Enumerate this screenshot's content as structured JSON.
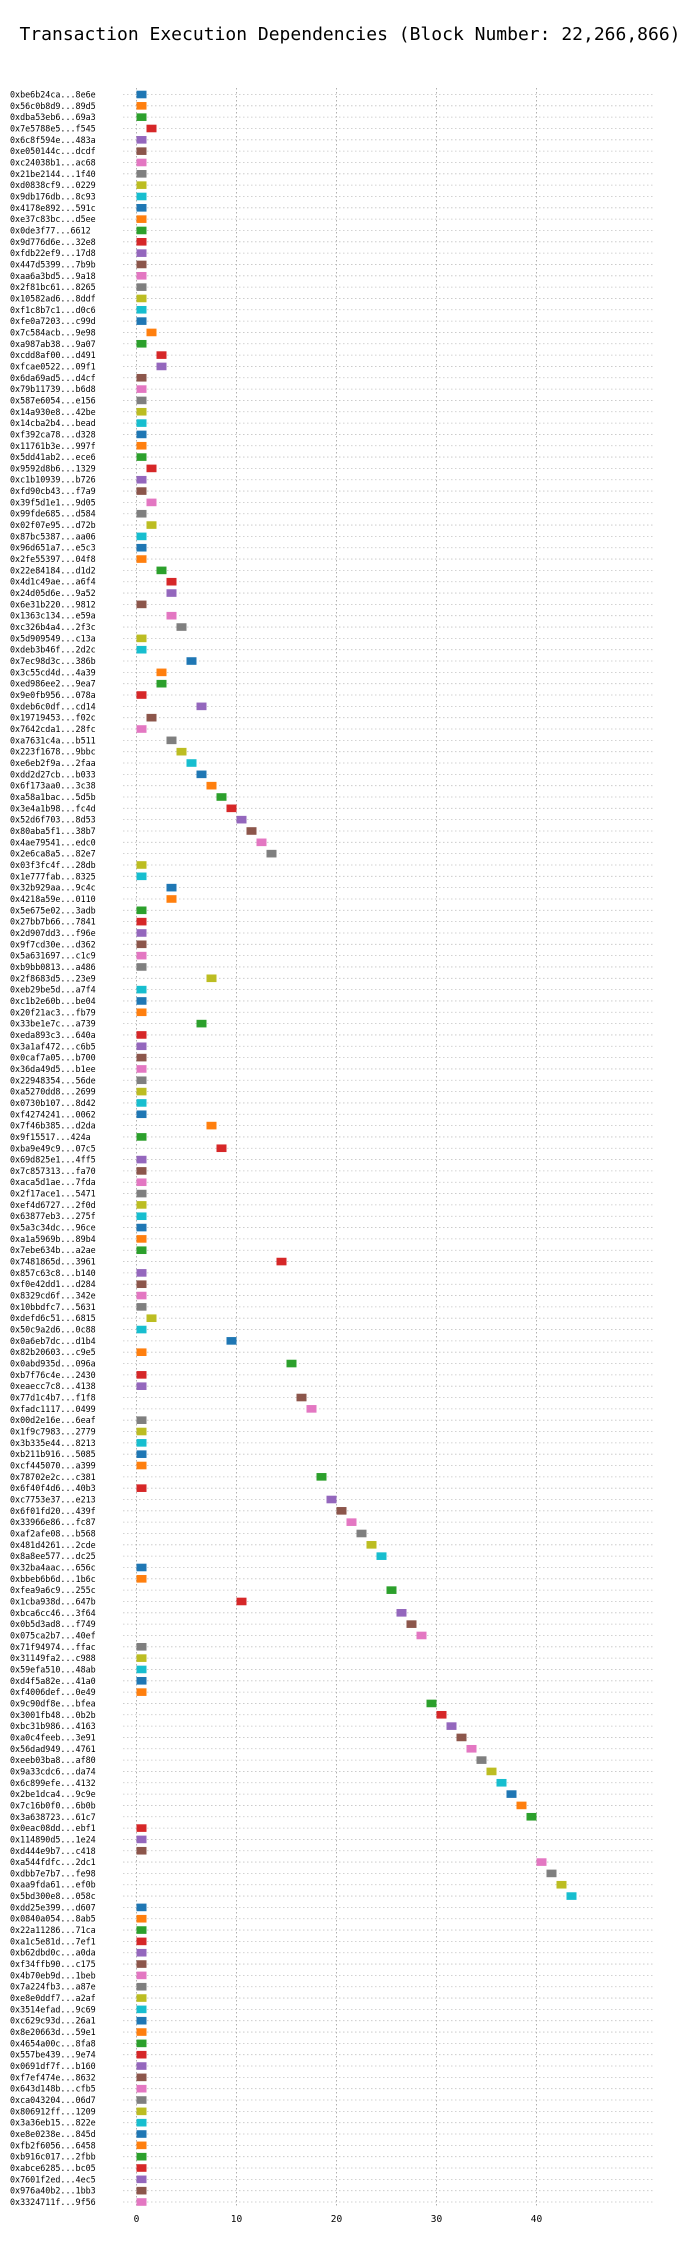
{
  "chart_data": {
    "type": "timeline",
    "title": "Transaction Execution Dependencies (Block Number: 22,266,866)",
    "xlabel": "",
    "ylabel": "",
    "xlim": [
      -1,
      47
    ],
    "xticks": [
      0,
      10,
      20,
      30,
      40
    ],
    "grid": "dotted",
    "bar_width": 1,
    "palette": [
      "#1f77b4",
      "#ff7f0e",
      "#2ca02c",
      "#d62728",
      "#9467bd",
      "#8c564b",
      "#e377c2",
      "#7f7f7f",
      "#bcbd22",
      "#17becf"
    ],
    "transactions": [
      {
        "label": "0xbe6b24ca...8e6e",
        "start": 0
      },
      {
        "label": "0x56c0b8d9...89d5",
        "start": 0
      },
      {
        "label": "0xdba53eb6...69a3",
        "start": 0
      },
      {
        "label": "0x7e5788e5...f545",
        "start": 1
      },
      {
        "label": "0x6c8f594e...483a",
        "start": 0
      },
      {
        "label": "0xe050144c...dcdf",
        "start": 0
      },
      {
        "label": "0xc24038b1...ac68",
        "start": 0
      },
      {
        "label": "0x21be2144...1f40",
        "start": 0
      },
      {
        "label": "0xd0838cf9...0229",
        "start": 0
      },
      {
        "label": "0x9db176db...8c93",
        "start": 0
      },
      {
        "label": "0x4178e892...591c",
        "start": 0
      },
      {
        "label": "0xe37c83bc...d5ee",
        "start": 0
      },
      {
        "label": "0x0de3f77...6612",
        "start": 0
      },
      {
        "label": "0x9d776d6e...32e8",
        "start": 0
      },
      {
        "label": "0xfdb22ef9...17d8",
        "start": 0
      },
      {
        "label": "0x447d5399...7b9b",
        "start": 0
      },
      {
        "label": "0xaa6a3bd5...9a18",
        "start": 0
      },
      {
        "label": "0x2f81bc61...8265",
        "start": 0
      },
      {
        "label": "0x10582ad6...8ddf",
        "start": 0
      },
      {
        "label": "0xf1c8b7c1...d0c6",
        "start": 0
      },
      {
        "label": "0xfe0a7203...c99d",
        "start": 0
      },
      {
        "label": "0x7c584acb...9e98",
        "start": 1
      },
      {
        "label": "0xa987ab38...9a07",
        "start": 0
      },
      {
        "label": "0xcdd8af00...d491",
        "start": 2
      },
      {
        "label": "0xfcae0522...09f1",
        "start": 2
      },
      {
        "label": "0x6da69ad5...d4cf",
        "start": 0
      },
      {
        "label": "0x79b11739...b6d8",
        "start": 0
      },
      {
        "label": "0x587e6054...e156",
        "start": 0
      },
      {
        "label": "0x14a930e8...42be",
        "start": 0
      },
      {
        "label": "0x14cba2b4...bead",
        "start": 0
      },
      {
        "label": "0xf392ca78...d328",
        "start": 0
      },
      {
        "label": "0x11761b3e...997f",
        "start": 0
      },
      {
        "label": "0x5dd41ab2...ece6",
        "start": 0
      },
      {
        "label": "0x9592d8b6...1329",
        "start": 1
      },
      {
        "label": "0xc1b10939...b726",
        "start": 0
      },
      {
        "label": "0xfd90cb43...f7a9",
        "start": 0
      },
      {
        "label": "0x39f5d1e1...9d05",
        "start": 1
      },
      {
        "label": "0x99fde685...d584",
        "start": 0
      },
      {
        "label": "0x02f07e95...d72b",
        "start": 1
      },
      {
        "label": "0x87bc5387...aa06",
        "start": 0
      },
      {
        "label": "0x96d651a7...e5c3",
        "start": 0
      },
      {
        "label": "0x2fe55397...04f8",
        "start": 0
      },
      {
        "label": "0x22e84184...d1d2",
        "start": 2
      },
      {
        "label": "0x4d1c49ae...a6f4",
        "start": 3
      },
      {
        "label": "0x24d05d6e...9a52",
        "start": 3
      },
      {
        "label": "0x6e31b220...9812",
        "start": 0
      },
      {
        "label": "0x1363c134...e59a",
        "start": 3
      },
      {
        "label": "0xc326b4a4...2f3c",
        "start": 4
      },
      {
        "label": "0x5d909549...c13a",
        "start": 0
      },
      {
        "label": "0xdeb3b46f...2d2c",
        "start": 0
      },
      {
        "label": "0x7ec98d3c...386b",
        "start": 5
      },
      {
        "label": "0x3c55cd4d...4a39",
        "start": 2
      },
      {
        "label": "0xed986ee2...9ea7",
        "start": 2
      },
      {
        "label": "0x9e0fb956...078a",
        "start": 0
      },
      {
        "label": "0xdeb6c0df...cd14",
        "start": 6
      },
      {
        "label": "0x19719453...f02c",
        "start": 1
      },
      {
        "label": "0x7642cda1...28fc",
        "start": 0
      },
      {
        "label": "0xa7631c4a...b511",
        "start": 3
      },
      {
        "label": "0x223f1678...9bbc",
        "start": 4
      },
      {
        "label": "0xe6eb2f9a...2faa",
        "start": 5
      },
      {
        "label": "0xdd2d27cb...b033",
        "start": 6
      },
      {
        "label": "0x6f173aa0...3c38",
        "start": 7
      },
      {
        "label": "0xa58a1bac...5d5b",
        "start": 8
      },
      {
        "label": "0x3e4a1b98...fc4d",
        "start": 9
      },
      {
        "label": "0x52d6f703...8d53",
        "start": 10
      },
      {
        "label": "0x80aba5f1...38b7",
        "start": 11
      },
      {
        "label": "0x4ae79541...edc0",
        "start": 12
      },
      {
        "label": "0x2e6ca8a5...82e7",
        "start": 13
      },
      {
        "label": "0x03f3fc4f...28db",
        "start": 0
      },
      {
        "label": "0x1e777fab...8325",
        "start": 0
      },
      {
        "label": "0x32b929aa...9c4c",
        "start": 3
      },
      {
        "label": "0x4218a59e...0110",
        "start": 3
      },
      {
        "label": "0x5e675e02...3adb",
        "start": 0
      },
      {
        "label": "0x27bb7b66...7841",
        "start": 0
      },
      {
        "label": "0x2d907dd3...f96e",
        "start": 0
      },
      {
        "label": "0x9f7cd30e...d362",
        "start": 0
      },
      {
        "label": "0x5a631697...c1c9",
        "start": 0
      },
      {
        "label": "0xb9bb0813...a486",
        "start": 0
      },
      {
        "label": "0x2f8683d5...23e9",
        "start": 7
      },
      {
        "label": "0xeb29be5d...a7f4",
        "start": 0
      },
      {
        "label": "0xc1b2e60b...be04",
        "start": 0
      },
      {
        "label": "0x20f21ac3...fb79",
        "start": 0
      },
      {
        "label": "0x33be1e7c...a739",
        "start": 6
      },
      {
        "label": "0xeda893c3...640a",
        "start": 0
      },
      {
        "label": "0x3a1af472...c6b5",
        "start": 0
      },
      {
        "label": "0x0caf7a05...b700",
        "start": 0
      },
      {
        "label": "0x36da49d5...b1ee",
        "start": 0
      },
      {
        "label": "0x22948354...56de",
        "start": 0
      },
      {
        "label": "0xa5270dd8...2699",
        "start": 0
      },
      {
        "label": "0x0730b107...8d42",
        "start": 0
      },
      {
        "label": "0xf4274241...0062",
        "start": 0
      },
      {
        "label": "0x7f46b385...d2da",
        "start": 7
      },
      {
        "label": "0x9f15517...424a",
        "start": 0
      },
      {
        "label": "0xba9e49c9...07c5",
        "start": 8
      },
      {
        "label": "0x69d825e1...4ff5",
        "start": 0
      },
      {
        "label": "0x7c857313...fa70",
        "start": 0
      },
      {
        "label": "0xaca5d1ae...7fda",
        "start": 0
      },
      {
        "label": "0x2f17ace1...5471",
        "start": 0
      },
      {
        "label": "0xef4d6727...2f0d",
        "start": 0
      },
      {
        "label": "0x63877eb3...275f",
        "start": 0
      },
      {
        "label": "0x5a3c34dc...96ce",
        "start": 0
      },
      {
        "label": "0xa1a5969b...89b4",
        "start": 0
      },
      {
        "label": "0x7ebe634b...a2ae",
        "start": 0
      },
      {
        "label": "0x7481865d...3961",
        "start": 14
      },
      {
        "label": "0x857c63c8...b140",
        "start": 0
      },
      {
        "label": "0xf0e42dd1...d284",
        "start": 0
      },
      {
        "label": "0x8329cd6f...342e",
        "start": 0
      },
      {
        "label": "0x10bbdfc7...5631",
        "start": 0
      },
      {
        "label": "0xdefd6c51...6815",
        "start": 1
      },
      {
        "label": "0x50c9a2d6...0c88",
        "start": 0
      },
      {
        "label": "0x0a6eb7dc...d1b4",
        "start": 9
      },
      {
        "label": "0x82b20603...c9e5",
        "start": 0
      },
      {
        "label": "0x0abd935d...096a",
        "start": 15
      },
      {
        "label": "0xb7f76c4e...2430",
        "start": 0
      },
      {
        "label": "0xeaecc7c8...4138",
        "start": 0
      },
      {
        "label": "0x77d1c4b7...f1f8",
        "start": 16
      },
      {
        "label": "0xfadc1117...0499",
        "start": 17
      },
      {
        "label": "0x00d2e16e...6eaf",
        "start": 0
      },
      {
        "label": "0x1f9c7983...2779",
        "start": 0
      },
      {
        "label": "0x3b335e44...8213",
        "start": 0
      },
      {
        "label": "0xb211b916...5085",
        "start": 0
      },
      {
        "label": "0xcf445070...a399",
        "start": 0
      },
      {
        "label": "0x78702e2c...c381",
        "start": 18
      },
      {
        "label": "0x6f40f4d6...40b3",
        "start": 0
      },
      {
        "label": "0xc7753e37...e213",
        "start": 19
      },
      {
        "label": "0x6f01fd20...439f",
        "start": 20
      },
      {
        "label": "0x33966e86...fc87",
        "start": 21
      },
      {
        "label": "0xaf2afe08...b568",
        "start": 22
      },
      {
        "label": "0x481d4261...2cde",
        "start": 23
      },
      {
        "label": "0x8a8ee577...dc25",
        "start": 24
      },
      {
        "label": "0x32ba4aac...656c",
        "start": 0
      },
      {
        "label": "0xbbeb6b6d...1b6c",
        "start": 0
      },
      {
        "label": "0xfea9a6c9...255c",
        "start": 25
      },
      {
        "label": "0x1cba938d...647b",
        "start": 10
      },
      {
        "label": "0xbca6cc46...3f64",
        "start": 26
      },
      {
        "label": "0x0b5d3ad8...f749",
        "start": 27
      },
      {
        "label": "0x075ca2b7...40ef",
        "start": 28
      },
      {
        "label": "0x71f94974...ffac",
        "start": 0
      },
      {
        "label": "0x31149fa2...c988",
        "start": 0
      },
      {
        "label": "0x59efa510...48ab",
        "start": 0
      },
      {
        "label": "0xd4f5a82e...41a0",
        "start": 0
      },
      {
        "label": "0xf4006def...0e49",
        "start": 0
      },
      {
        "label": "0x9c90df8e...bfea",
        "start": 29
      },
      {
        "label": "0x3001fb48...0b2b",
        "start": 30
      },
      {
        "label": "0xbc31b986...4163",
        "start": 31
      },
      {
        "label": "0xa0c4feeb...3e91",
        "start": 32
      },
      {
        "label": "0x56dad949...4761",
        "start": 33
      },
      {
        "label": "0xeeb03ba8...af80",
        "start": 34
      },
      {
        "label": "0x9a33cdc6...da74",
        "start": 35
      },
      {
        "label": "0x6c899efe...4132",
        "start": 36
      },
      {
        "label": "0x2be1dca4...9c9e",
        "start": 37
      },
      {
        "label": "0x7c16b0f0...6b0b",
        "start": 38
      },
      {
        "label": "0x3a638723...61c7",
        "start": 39
      },
      {
        "label": "0x0eac08dd...ebf1",
        "start": 0
      },
      {
        "label": "0x114890d5...1e24",
        "start": 0
      },
      {
        "label": "0xd444e9b7...c418",
        "start": 0
      },
      {
        "label": "0xa544fdfc...2dc1",
        "start": 40
      },
      {
        "label": "0xdbb7e7b7...fe98",
        "start": 41
      },
      {
        "label": "0xaa9fda61...ef0b",
        "start": 42
      },
      {
        "label": "0x5bd300e8...058c",
        "start": 43
      },
      {
        "label": "0xdd25e399...d607",
        "start": 0
      },
      {
        "label": "0x0840a054...8ab5",
        "start": 0
      },
      {
        "label": "0x22a11286...71ca",
        "start": 0
      },
      {
        "label": "0xa1c5e81d...7ef1",
        "start": 0
      },
      {
        "label": "0xb62dbd0c...a0da",
        "start": 0
      },
      {
        "label": "0xf34ffb90...c175",
        "start": 0
      },
      {
        "label": "0x4b70eb9d...1beb",
        "start": 0
      },
      {
        "label": "0x7a224fb3...a87e",
        "start": 0
      },
      {
        "label": "0xe8e0ddf7...a2af",
        "start": 0
      },
      {
        "label": "0x3514efad...9c69",
        "start": 0
      },
      {
        "label": "0xc629c93d...26a1",
        "start": 0
      },
      {
        "label": "0x8e20663d...59e1",
        "start": 0
      },
      {
        "label": "0x4654a00c...8fa8",
        "start": 0
      },
      {
        "label": "0x557be439...9e74",
        "start": 0
      },
      {
        "label": "0x0691df7f...b160",
        "start": 0
      },
      {
        "label": "0xf7ef474e...8632",
        "start": 0
      },
      {
        "label": "0x643d148b...cfb5",
        "start": 0
      },
      {
        "label": "0xca043204...06d7",
        "start": 0
      },
      {
        "label": "0x806912ff...1209",
        "start": 0
      },
      {
        "label": "0x3a36eb15...822e",
        "start": 0
      },
      {
        "label": "0xe8e0238e...845d",
        "start": 0
      },
      {
        "label": "0xfb2f6056...6458",
        "start": 0
      },
      {
        "label": "0xb916c017...2fbb",
        "start": 0
      },
      {
        "label": "0xabce6285...bc05",
        "start": 0
      },
      {
        "label": "0x7601f2ed...4ec5",
        "start": 0
      },
      {
        "label": "0x976a40b2...1bb3",
        "start": 0
      },
      {
        "label": "0x3324711f...9f56",
        "start": 0
      }
    ]
  }
}
